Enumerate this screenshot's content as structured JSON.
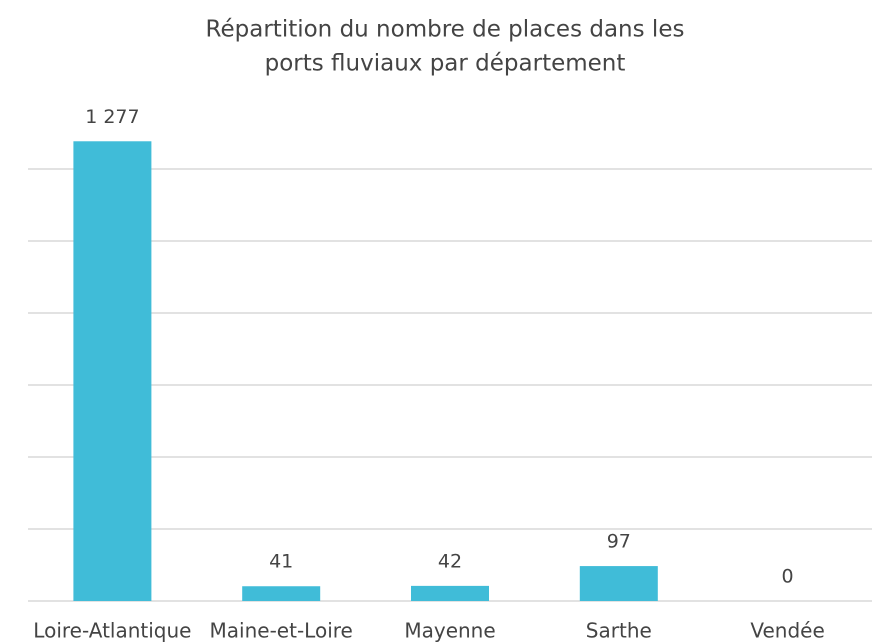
{
  "chart_data": {
    "type": "bar",
    "title": [
      "Répartition du nombre de places dans les",
      "ports fluviaux par département"
    ],
    "categories": [
      "Loire-Atlantique",
      "Maine-et-Loire",
      "Mayenne",
      "Sarthe",
      "Vendée"
    ],
    "values": [
      1277,
      41,
      42,
      97,
      0
    ],
    "value_labels": [
      "1 277",
      "41",
      "42",
      "97",
      "0"
    ],
    "color": "#40bcd8",
    "ylim": [
      0,
      1400
    ],
    "yticks": [
      0,
      200,
      400,
      600,
      800,
      1000,
      1200
    ],
    "grid": true
  }
}
